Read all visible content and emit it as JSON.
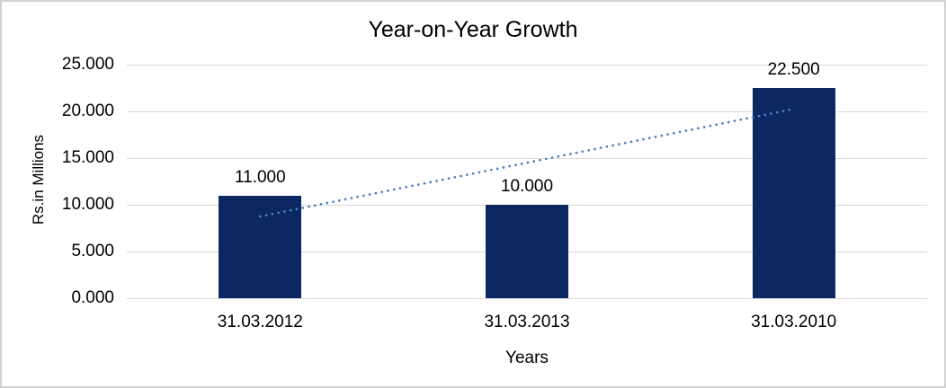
{
  "chart_data": {
    "type": "bar",
    "title": "Year-on-Year Growth",
    "xlabel": "Years",
    "ylabel": "Rs.in Millions",
    "categories": [
      "31.03.2012",
      "31.03.2013",
      "31.03.2010"
    ],
    "values": [
      11.0,
      10.0,
      22.5
    ],
    "value_labels": [
      "11.000",
      "10.000",
      "22.500"
    ],
    "ylim": [
      0,
      25
    ],
    "yticks": [
      0,
      5,
      10,
      15,
      20,
      25
    ],
    "ytick_labels": [
      "0.000",
      "5.000",
      "10.000",
      "15.000",
      "20.000",
      "25.000"
    ],
    "grid": true,
    "legend": "none",
    "bar_color": "#0c2862",
    "gridline_color": "#d9d9d9",
    "trendline": {
      "style": "dotted",
      "color": "#4f81bd",
      "start_value": 8.75,
      "end_value": 20.25
    }
  }
}
